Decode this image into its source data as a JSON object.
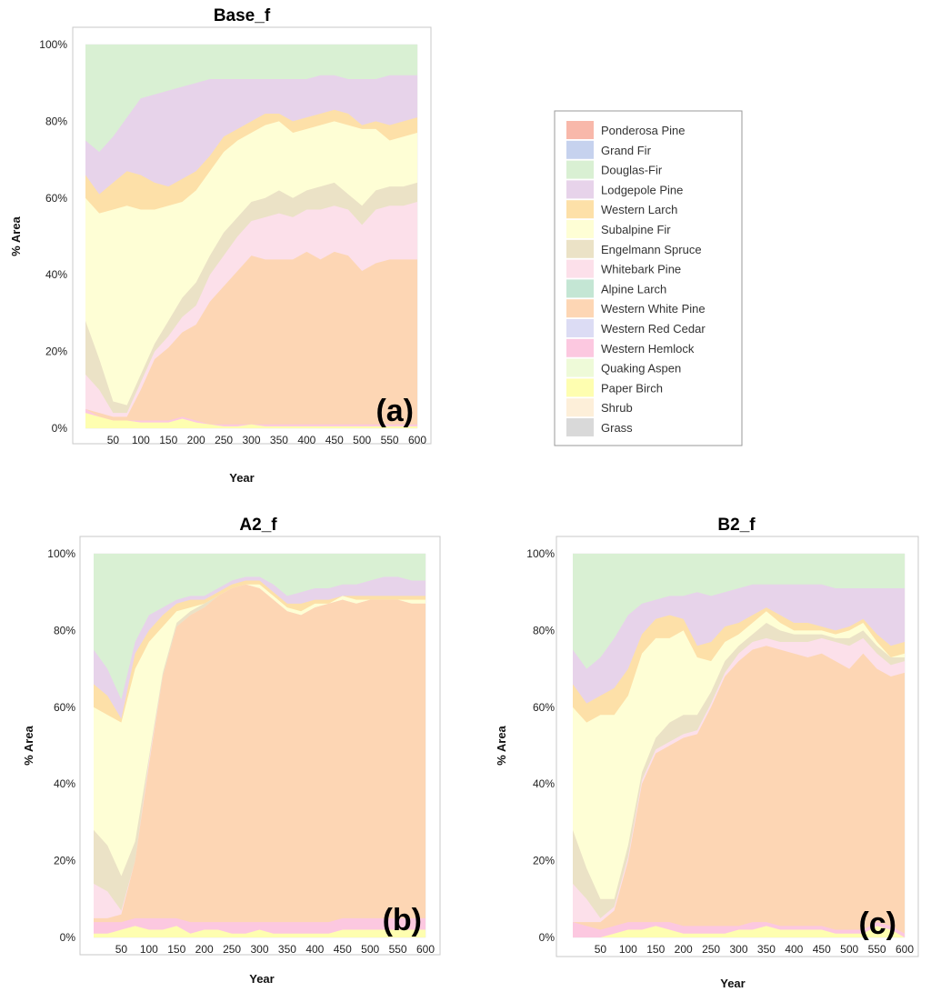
{
  "legend": [
    {
      "name": "Ponderosa Pine",
      "color": "#f8b8aa"
    },
    {
      "name": "Grand Fir",
      "color": "#c6d2ee"
    },
    {
      "name": "Douglas-Fir",
      "color": "#d9f0d3"
    },
    {
      "name": "Lodgepole Pine",
      "color": "#e7d3ea"
    },
    {
      "name": "Western Larch",
      "color": "#fde0a8"
    },
    {
      "name": "Subalpine Fir",
      "color": "#fefed5"
    },
    {
      "name": "Engelmann Spruce",
      "color": "#ebe2c6"
    },
    {
      "name": "Whitebark Pine",
      "color": "#fce0ea"
    },
    {
      "name": "Alpine Larch",
      "color": "#c4e6d4"
    },
    {
      "name": "Western White Pine",
      "color": "#fdd6b4"
    },
    {
      "name": "Western Red Cedar",
      "color": "#dcdcf4"
    },
    {
      "name": "Western Hemlock",
      "color": "#fcc8e0"
    },
    {
      "name": "Quaking Aspen",
      "color": "#eefad8"
    },
    {
      "name": "Paper Birch",
      "color": "#fefeb0"
    },
    {
      "name": "Shrub",
      "color": "#fdefd9"
    },
    {
      "name": "Grass",
      "color": "#d9d9d9"
    }
  ],
  "chart_data": [
    {
      "type": "area",
      "title": "Base_f",
      "panel_label": "(a)",
      "xlabel": "Year",
      "ylabel": "% Area",
      "xlim": [
        0,
        600
      ],
      "ylim": [
        0,
        100
      ],
      "x_ticks": [
        50,
        100,
        150,
        200,
        250,
        300,
        350,
        400,
        450,
        500,
        550,
        600
      ],
      "y_ticks": [
        "0%",
        "20%",
        "40%",
        "60%",
        "80%",
        "100%"
      ],
      "x": [
        0,
        25,
        50,
        75,
        100,
        125,
        150,
        175,
        200,
        225,
        250,
        275,
        300,
        325,
        350,
        375,
        400,
        425,
        450,
        475,
        500,
        525,
        550,
        575,
        600
      ],
      "boundaries": {
        "Paper Birch": [
          4,
          3,
          2,
          2,
          1.5,
          1.5,
          1.5,
          2.5,
          1.5,
          1,
          0.5,
          0.5,
          1,
          0.5,
          0.5,
          0.5,
          0.5,
          0.5,
          0.5,
          0.5,
          0.5,
          0.5,
          0.5,
          0.5,
          0.5
        ],
        "Western Hemlock": [
          5,
          3,
          2,
          2,
          2,
          2,
          2,
          3,
          2,
          1,
          1,
          1,
          1,
          1,
          1,
          1,
          1,
          1,
          1,
          1,
          1,
          1,
          1,
          1,
          1
        ],
        "Western White Pine": [
          5,
          4,
          3,
          3,
          10,
          18,
          21,
          25,
          27,
          33,
          37,
          41,
          45,
          44,
          44,
          44,
          46,
          44,
          46,
          45,
          41,
          43,
          44,
          44,
          44
        ],
        "Whitebark Pine": [
          14,
          10,
          4,
          4,
          12,
          20,
          24,
          29,
          32,
          40,
          45,
          50,
          54,
          55,
          56,
          55,
          57,
          57,
          58,
          57,
          53,
          57,
          58,
          58,
          59
        ],
        "Engelmann Spruce": [
          28,
          18,
          7,
          6,
          14,
          22,
          28,
          34,
          38,
          45,
          51,
          55,
          59,
          60,
          62,
          60,
          62,
          63,
          64,
          61,
          58,
          62,
          63,
          63,
          64
        ],
        "Subalpine Fir": [
          60,
          56,
          57,
          58,
          57,
          57,
          58,
          59,
          62,
          67,
          72,
          75,
          77,
          79,
          80,
          77,
          78,
          79,
          80,
          79,
          78,
          78,
          75,
          76,
          77
        ],
        "Western Larch": [
          66,
          61,
          64,
          67,
          66,
          64,
          63,
          65,
          67,
          71,
          76,
          78,
          80,
          82,
          82,
          80,
          81,
          82,
          83,
          82,
          79,
          80,
          79,
          80,
          81
        ],
        "Lodgepole Pine": [
          75,
          72,
          76,
          81,
          86,
          87,
          88,
          89,
          90,
          91,
          91,
          91,
          91,
          91,
          91,
          91,
          91,
          92,
          92,
          91,
          91,
          91,
          92,
          92,
          92
        ],
        "Douglas-Fir": [
          100,
          100,
          100,
          100,
          100,
          100,
          100,
          100,
          100,
          100,
          100,
          100,
          100,
          100,
          100,
          100,
          100,
          100,
          100,
          100,
          100,
          100,
          100,
          100,
          100
        ]
      }
    },
    {
      "type": "area",
      "title": "A2_f",
      "panel_label": "(b)",
      "xlabel": "Year",
      "ylabel": "% Area",
      "xlim": [
        0,
        600
      ],
      "ylim": [
        0,
        100
      ],
      "x_ticks": [
        50,
        100,
        150,
        200,
        250,
        300,
        350,
        400,
        450,
        500,
        550,
        600
      ],
      "y_ticks": [
        "0%",
        "20%",
        "40%",
        "60%",
        "80%",
        "100%"
      ],
      "x": [
        0,
        25,
        50,
        75,
        100,
        125,
        150,
        175,
        200,
        225,
        250,
        275,
        300,
        325,
        350,
        375,
        400,
        425,
        450,
        475,
        500,
        525,
        550,
        575,
        600
      ],
      "boundaries": {
        "Paper Birch": [
          1,
          1,
          2,
          3,
          2,
          2,
          3,
          1,
          2,
          2,
          1,
          1,
          2,
          1,
          1,
          1,
          1,
          1,
          2,
          2,
          2,
          2,
          2,
          2,
          2
        ],
        "Western Hemlock": [
          4,
          4,
          4,
          5,
          5,
          5,
          5,
          4,
          4,
          4,
          4,
          4,
          4,
          4,
          4,
          4,
          4,
          4,
          5,
          5,
          5,
          5,
          5,
          5,
          5
        ],
        "Western White Pine": [
          5,
          5,
          6,
          20,
          45,
          68,
          81,
          84,
          86,
          89,
          91,
          92,
          91,
          88,
          85,
          84,
          86,
          87,
          88,
          87,
          88,
          88,
          88,
          87,
          87
        ],
        "Whitebark Pine": [
          14,
          12,
          7,
          20,
          46,
          68,
          81,
          84,
          86,
          89,
          91,
          92,
          91,
          88,
          85,
          84,
          86,
          87,
          88,
          87,
          88,
          88,
          88,
          87,
          87
        ],
        "Engelmann Spruce": [
          28,
          24,
          16,
          25,
          47,
          69,
          82,
          85,
          87,
          89,
          91,
          92,
          91,
          88,
          85,
          84,
          86,
          87,
          88,
          87,
          88,
          88,
          88,
          87,
          87
        ],
        "Subalpine Fir": [
          60,
          58,
          56,
          70,
          77,
          81,
          85,
          86,
          87,
          89,
          91,
          92,
          92,
          89,
          86,
          85,
          87,
          87,
          89,
          88,
          88,
          88,
          88,
          88,
          88
        ],
        "Western Larch": [
          66,
          63,
          57,
          74,
          80,
          84,
          87,
          88,
          88,
          90,
          92,
          93,
          93,
          90,
          87,
          87,
          88,
          88,
          89,
          89,
          89,
          89,
          89,
          89,
          89
        ],
        "Lodgepole Pine": [
          75,
          70,
          62,
          77,
          84,
          86,
          88,
          89,
          89,
          91,
          93,
          94,
          94,
          92,
          89,
          90,
          91,
          91,
          92,
          92,
          93,
          94,
          94,
          93,
          93
        ],
        "Douglas-Fir": [
          100,
          100,
          100,
          100,
          100,
          100,
          100,
          100,
          100,
          100,
          100,
          100,
          100,
          100,
          100,
          100,
          100,
          100,
          100,
          100,
          100,
          100,
          100,
          100,
          100
        ]
      }
    },
    {
      "type": "area",
      "title": "B2_f",
      "panel_label": "(c)",
      "xlabel": "Year",
      "ylabel": "% Area",
      "xlim": [
        0,
        600
      ],
      "ylim": [
        0,
        100
      ],
      "x_ticks": [
        50,
        100,
        150,
        200,
        250,
        300,
        350,
        400,
        450,
        500,
        550,
        600
      ],
      "y_ticks": [
        "0%",
        "20%",
        "40%",
        "60%",
        "80%",
        "100%"
      ],
      "x": [
        0,
        25,
        50,
        75,
        100,
        125,
        150,
        175,
        200,
        225,
        250,
        275,
        300,
        325,
        350,
        375,
        400,
        425,
        450,
        475,
        500,
        525,
        550,
        575,
        600
      ],
      "boundaries": {
        "Paper Birch": [
          0,
          0,
          0,
          1,
          2,
          2,
          3,
          2,
          1,
          1,
          1,
          1,
          2,
          2,
          3,
          2,
          2,
          2,
          2,
          1,
          1,
          1,
          3,
          2,
          0
        ],
        "Western Hemlock": [
          4,
          3,
          2,
          3,
          4,
          4,
          4,
          4,
          3,
          3,
          3,
          3,
          3,
          4,
          4,
          3,
          3,
          3,
          3,
          2,
          2,
          2,
          4,
          3,
          1
        ],
        "Western White Pine": [
          4,
          4,
          4,
          7,
          20,
          40,
          48,
          50,
          52,
          53,
          60,
          68,
          72,
          75,
          76,
          75,
          74,
          73,
          74,
          72,
          70,
          74,
          70,
          68,
          69
        ],
        "Whitebark Pine": [
          14,
          10,
          5,
          8,
          21,
          41,
          49,
          51,
          53,
          54,
          61,
          69,
          74,
          77,
          78,
          77,
          77,
          77,
          78,
          77,
          76,
          78,
          74,
          71,
          72
        ],
        "Engelmann Spruce": [
          28,
          18,
          10,
          10,
          24,
          43,
          52,
          56,
          58,
          58,
          64,
          72,
          76,
          79,
          82,
          80,
          79,
          79,
          79,
          78,
          78,
          80,
          76,
          73,
          73
        ],
        "Subalpine Fir": [
          60,
          56,
          58,
          58,
          63,
          74,
          78,
          78,
          80,
          73,
          72,
          77,
          79,
          82,
          85,
          82,
          80,
          80,
          80,
          79,
          80,
          82,
          77,
          73,
          74
        ],
        "Western Larch": [
          66,
          61,
          63,
          65,
          70,
          79,
          83,
          84,
          83,
          76,
          77,
          81,
          82,
          84,
          86,
          84,
          82,
          82,
          81,
          80,
          81,
          83,
          79,
          76,
          77
        ],
        "Lodgepole Pine": [
          75,
          70,
          73,
          78,
          84,
          87,
          88,
          89,
          89,
          90,
          89,
          90,
          91,
          92,
          92,
          92,
          92,
          92,
          92,
          91,
          91,
          91,
          91,
          91,
          91
        ],
        "Douglas-Fir": [
          100,
          100,
          100,
          100,
          100,
          100,
          100,
          100,
          100,
          100,
          100,
          100,
          100,
          100,
          100,
          100,
          100,
          100,
          100,
          100,
          100,
          100,
          100,
          100,
          100
        ]
      }
    }
  ]
}
